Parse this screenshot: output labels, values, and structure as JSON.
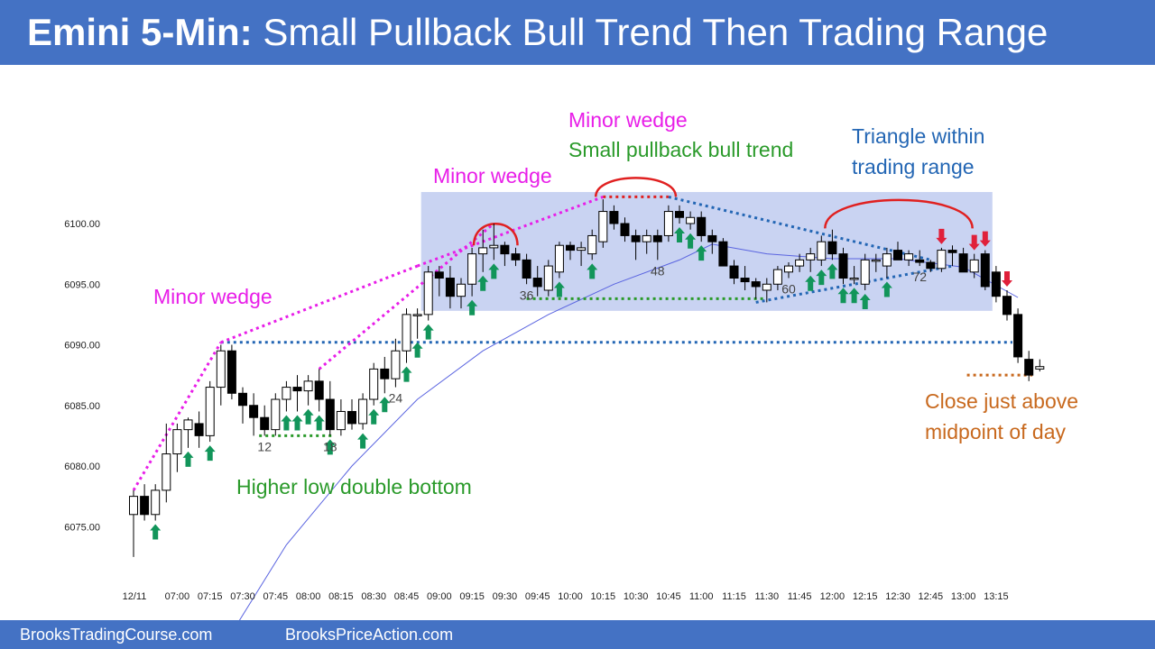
{
  "header": {
    "title_bold": "Emini 5-Min:",
    "title_rest": " Small Pullback Bull Trend Then Trading Range"
  },
  "footer": {
    "left": "BrooksTradingCourse.com",
    "right": "BrooksPriceAction.com"
  },
  "colors": {
    "header_bg": "#4472c4",
    "magenta": "#e81ee8",
    "green": "#2a9a2a",
    "blue_text": "#2366b4",
    "orange": "#c8691e",
    "red": "#e02020",
    "ema": "#5a64e0",
    "range_box": "#c9d3f2",
    "up_arrow": "#12955a",
    "down_arrow": "#e0203a"
  },
  "annotations": {
    "minor_wedge_left": "Minor wedge",
    "minor_wedge_mid": "Minor wedge",
    "minor_wedge_top": "Minor wedge",
    "small_pullback": "Small pullback bull trend",
    "triangle_line1": "Triangle within",
    "triangle_line2": "trading range",
    "higher_low": "Higher low double bottom",
    "close_line1": "Close just above",
    "close_line2": "midpoint of day"
  },
  "chart_data": {
    "type": "candlestick",
    "title": "Emini 5-Min: Small Pullback Bull Trend Then Trading Range",
    "y_ticks": [
      "6100.00",
      "6095.00",
      "6090.00",
      "6085.00",
      "6080.00",
      "6075.00"
    ],
    "y_tick_values": [
      6100,
      6095,
      6090,
      6085,
      6080,
      6075
    ],
    "ylim": [
      6069,
      6106
    ],
    "x_ticks": [
      "12/11",
      "07:00",
      "07:15",
      "07:30",
      "07:45",
      "08:00",
      "08:15",
      "08:30",
      "08:45",
      "09:00",
      "09:15",
      "09:30",
      "09:45",
      "10:00",
      "10:15",
      "10:30",
      "10:45",
      "11:00",
      "11:15",
      "11:30",
      "11:45",
      "12:00",
      "12:15",
      "12:30",
      "12:45",
      "13:00",
      "13:15"
    ],
    "x_tick_bars": [
      0,
      4,
      7,
      10,
      13,
      16,
      19,
      22,
      25,
      28,
      31,
      34,
      37,
      40,
      43,
      46,
      49,
      52,
      55,
      58,
      61,
      64,
      67,
      70,
      73,
      76,
      79
    ],
    "bar_labels": [
      {
        "bar": 12,
        "text": "12"
      },
      {
        "bar": 18,
        "text": "18"
      },
      {
        "bar": 24,
        "text": "24"
      },
      {
        "bar": 36,
        "text": "36"
      },
      {
        "bar": 48,
        "text": "48"
      },
      {
        "bar": 60,
        "text": "60"
      },
      {
        "bar": 72,
        "text": "72"
      }
    ],
    "bars": [
      [
        6076.0,
        6078.0,
        6072.5,
        6077.5
      ],
      [
        6077.5,
        6078.5,
        6075.5,
        6076.0
      ],
      [
        6076.0,
        6078.5,
        6075.5,
        6078.0
      ],
      [
        6078.0,
        6083.5,
        6077.0,
        6081.0
      ],
      [
        6081.0,
        6083.5,
        6079.5,
        6083.0
      ],
      [
        6083.0,
        6084.0,
        6081.5,
        6083.8
      ],
      [
        6083.5,
        6084.5,
        6081.5,
        6082.5
      ],
      [
        6082.5,
        6087.0,
        6082.0,
        6086.5
      ],
      [
        6086.5,
        6090.0,
        6085.0,
        6089.5
      ],
      [
        6089.5,
        6090.0,
        6085.5,
        6086.0
      ],
      [
        6086.0,
        6086.5,
        6083.5,
        6085.0
      ],
      [
        6085.0,
        6086.0,
        6082.5,
        6084.0
      ],
      [
        6084.0,
        6085.0,
        6082.5,
        6083.0
      ],
      [
        6083.0,
        6086.0,
        6082.5,
        6085.5
      ],
      [
        6085.5,
        6087.0,
        6084.5,
        6086.5
      ],
      [
        6086.5,
        6087.5,
        6084.5,
        6086.2
      ],
      [
        6086.2,
        6087.5,
        6085.0,
        6087.0
      ],
      [
        6087.0,
        6088.0,
        6084.5,
        6085.5
      ],
      [
        6085.5,
        6087.0,
        6082.5,
        6083.0
      ],
      [
        6083.0,
        6085.5,
        6082.5,
        6084.5
      ],
      [
        6084.5,
        6085.5,
        6083.0,
        6083.5
      ],
      [
        6083.5,
        6086.0,
        6083.0,
        6085.5
      ],
      [
        6085.5,
        6088.5,
        6085.0,
        6088.0
      ],
      [
        6088.0,
        6089.0,
        6086.0,
        6087.2
      ],
      [
        6087.2,
        6090.5,
        6086.5,
        6089.5
      ],
      [
        6089.5,
        6093.0,
        6088.5,
        6092.5
      ],
      [
        6092.5,
        6093.0,
        6090.5,
        6092.5
      ],
      [
        6092.5,
        6096.5,
        6092.0,
        6096.0
      ],
      [
        6096.0,
        6096.5,
        6094.0,
        6095.5
      ],
      [
        6095.5,
        6096.5,
        6093.0,
        6094.0
      ],
      [
        6094.0,
        6095.5,
        6093.0,
        6095.0
      ],
      [
        6095.0,
        6098.0,
        6094.0,
        6097.5
      ],
      [
        6097.5,
        6099.5,
        6096.0,
        6098.0
      ],
      [
        6098.0,
        6100.0,
        6097.0,
        6098.2
      ],
      [
        6098.2,
        6098.5,
        6096.5,
        6097.5
      ],
      [
        6097.5,
        6098.0,
        6096.5,
        6097.0
      ],
      [
        6097.0,
        6097.5,
        6095.0,
        6095.5
      ],
      [
        6095.5,
        6096.5,
        6094.0,
        6094.8
      ],
      [
        6094.5,
        6097.0,
        6094.0,
        6096.5
      ],
      [
        6096.0,
        6098.5,
        6095.5,
        6098.2
      ],
      [
        6098.2,
        6098.5,
        6097.0,
        6097.8
      ],
      [
        6097.8,
        6098.5,
        6096.5,
        6098.0
      ],
      [
        6097.5,
        6099.5,
        6097.0,
        6099.0
      ],
      [
        6098.5,
        6102.0,
        6098.0,
        6101.0
      ],
      [
        6101.0,
        6101.5,
        6099.5,
        6100.0
      ],
      [
        6100.0,
        6100.5,
        6098.5,
        6099.0
      ],
      [
        6099.0,
        6099.5,
        6097.0,
        6098.5
      ],
      [
        6098.5,
        6099.5,
        6097.5,
        6099.0
      ],
      [
        6099.0,
        6099.5,
        6097.0,
        6098.5
      ],
      [
        6099.0,
        6101.5,
        6098.5,
        6101.0
      ],
      [
        6101.0,
        6101.5,
        6100.0,
        6100.5
      ],
      [
        6100.0,
        6101.0,
        6099.5,
        6100.5
      ],
      [
        6100.5,
        6101.0,
        6098.5,
        6099.0
      ],
      [
        6099.0,
        6099.5,
        6097.5,
        6098.5
      ],
      [
        6098.5,
        6098.8,
        6096.5,
        6096.5
      ],
      [
        6096.5,
        6097.0,
        6095.0,
        6095.5
      ],
      [
        6095.5,
        6096.5,
        6094.5,
        6095.2
      ],
      [
        6095.2,
        6095.5,
        6093.8,
        6094.8
      ],
      [
        6094.5,
        6095.5,
        6093.5,
        6095.0
      ],
      [
        6095.0,
        6096.5,
        6094.5,
        6096.2
      ],
      [
        6096.0,
        6096.8,
        6095.5,
        6096.5
      ],
      [
        6096.5,
        6097.5,
        6096.0,
        6097.0
      ],
      [
        6097.0,
        6098.0,
        6096.0,
        6097.5
      ],
      [
        6097.0,
        6099.0,
        6096.5,
        6098.5
      ],
      [
        6098.5,
        6099.5,
        6097.0,
        6097.5
      ],
      [
        6097.5,
        6098.0,
        6095.0,
        6095.5
      ],
      [
        6095.5,
        6096.5,
        6095.0,
        6095.5
      ],
      [
        6095.0,
        6097.5,
        6094.5,
        6097.0
      ],
      [
        6097.0,
        6097.5,
        6096.0,
        6097.0
      ],
      [
        6096.5,
        6098.0,
        6095.5,
        6097.5
      ],
      [
        6097.8,
        6098.5,
        6097.0,
        6097.0
      ],
      [
        6097.0,
        6097.8,
        6096.5,
        6097.5
      ],
      [
        6097.0,
        6097.8,
        6096.5,
        6096.8
      ],
      [
        6096.8,
        6097.0,
        6096.0,
        6096.3
      ],
      [
        6096.3,
        6098.0,
        6096.0,
        6097.8
      ],
      [
        6097.8,
        6098.2,
        6096.5,
        6097.6
      ],
      [
        6097.5,
        6098.0,
        6096.0,
        6096.0
      ],
      [
        6096.0,
        6097.5,
        6095.5,
        6097.0
      ],
      [
        6097.5,
        6097.8,
        6094.5,
        6094.8
      ],
      [
        6096.0,
        6096.5,
        6093.5,
        6094.0
      ],
      [
        6094.0,
        6094.5,
        6092.0,
        6092.5
      ],
      [
        6092.5,
        6093.0,
        6088.5,
        6089.0
      ],
      [
        6088.8,
        6089.5,
        6087.0,
        6087.5
      ],
      [
        6088.0,
        6088.8,
        6087.8,
        6088.2
      ]
    ],
    "ema": [
      {
        "bar": 8,
        "value": 6064.8
      },
      {
        "bar": 14,
        "value": 6073.5
      },
      {
        "bar": 20,
        "value": 6080.0
      },
      {
        "bar": 26,
        "value": 6085.5
      },
      {
        "bar": 32,
        "value": 6089.5
      },
      {
        "bar": 38,
        "value": 6092.5
      },
      {
        "bar": 44,
        "value": 6095.0
      },
      {
        "bar": 50,
        "value": 6097.0
      },
      {
        "bar": 53,
        "value": 6098.3
      },
      {
        "bar": 58,
        "value": 6097.5
      },
      {
        "bar": 64,
        "value": 6097.1
      },
      {
        "bar": 70,
        "value": 6097.1
      },
      {
        "bar": 76,
        "value": 6096.4
      },
      {
        "bar": 81,
        "value": 6093.9
      }
    ],
    "up_arrows": [
      2,
      5,
      7,
      14,
      15,
      16,
      17,
      18,
      21,
      22,
      23,
      25,
      26,
      27,
      31,
      32,
      33,
      39,
      42,
      50,
      51,
      52,
      62,
      63,
      64,
      65,
      66,
      67,
      69
    ],
    "down_arrows": [
      74,
      77,
      78,
      80
    ],
    "trading_range": {
      "start_bar": 27,
      "end_bar": 78,
      "low": 6092.8,
      "high": 6102.6
    },
    "levels": [
      {
        "name": "breakout",
        "value": 6090.2,
        "from_bar": 8,
        "to_bar": 80
      },
      {
        "name": "higher-low",
        "value": 6082.5,
        "from_bar": 12,
        "to_bar": 18
      },
      {
        "name": "bar36-low",
        "value": 6093.8,
        "from_bar": 36,
        "to_bar": 58
      },
      {
        "name": "top",
        "value": 6102.2,
        "from_bar": 43,
        "to_bar": 49
      },
      {
        "name": "midpoint",
        "value": 6087.5,
        "from_bar": 76,
        "to_bar": 82
      }
    ]
  }
}
